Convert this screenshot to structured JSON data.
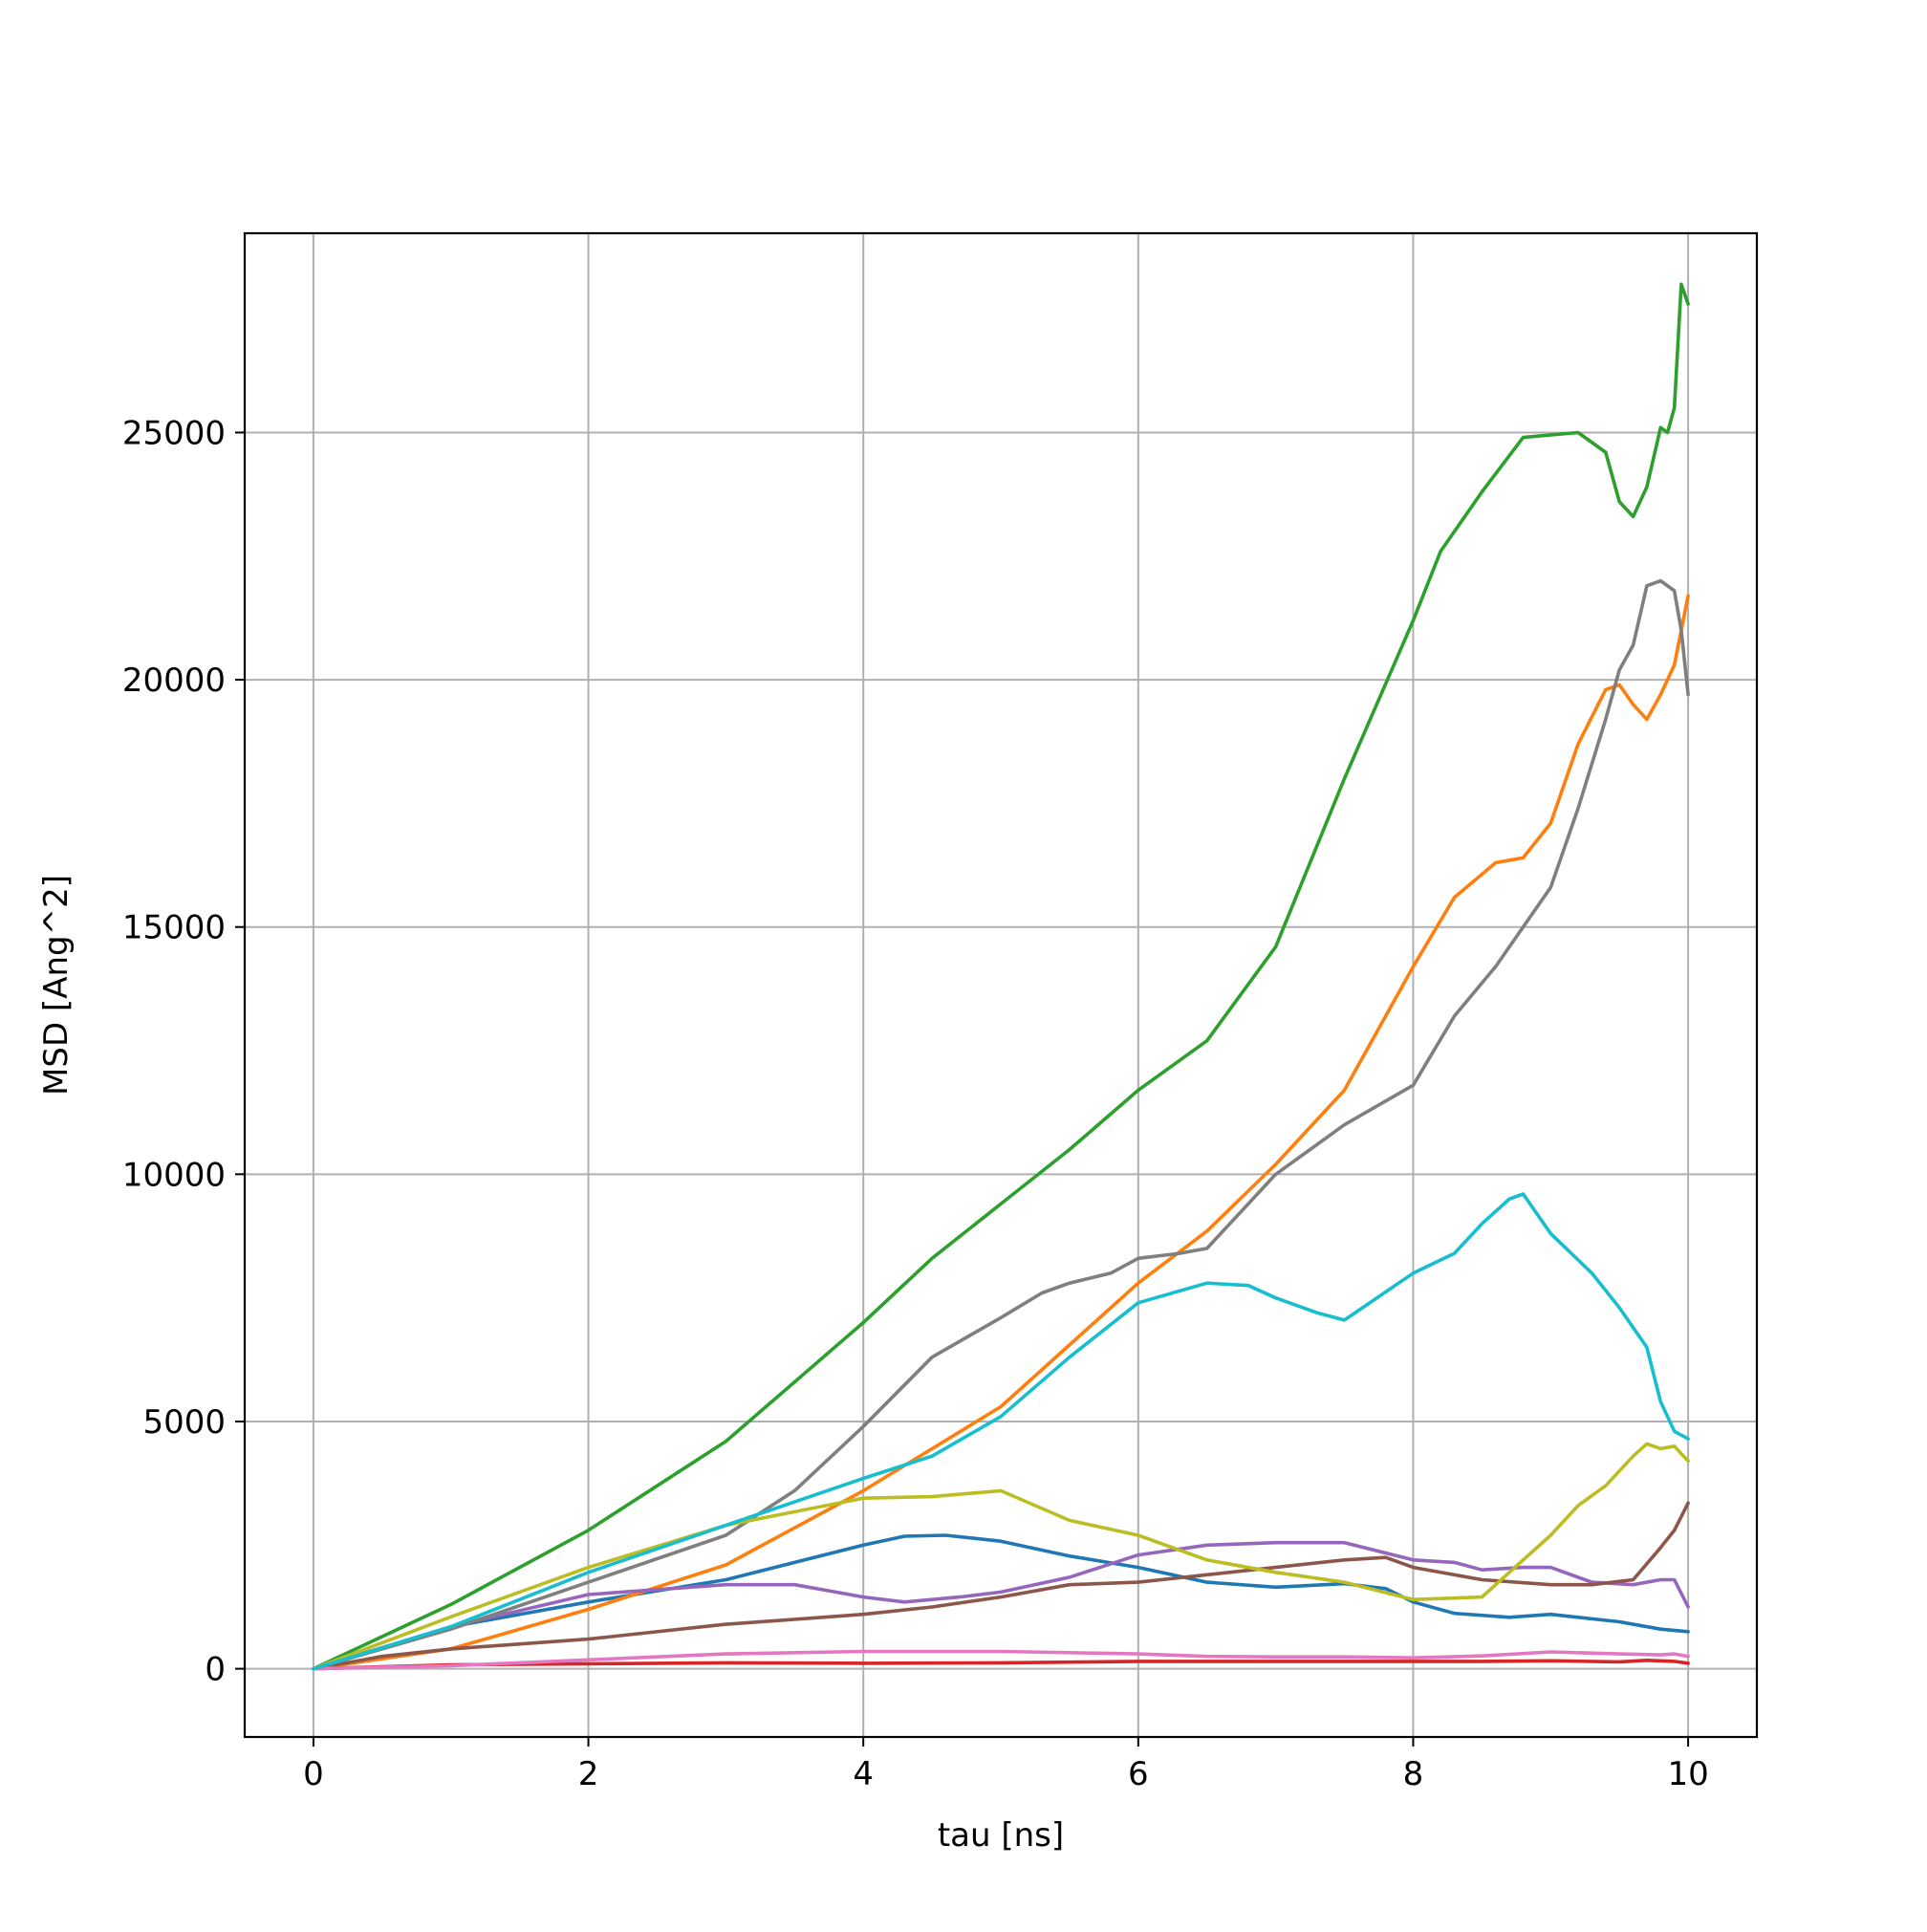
{
  "chart_data": {
    "type": "line",
    "xlabel": "tau [ns]",
    "ylabel": "MSD [Ang^2]",
    "xlim": [
      -0.5,
      10.5
    ],
    "ylim": [
      -1380,
      29030
    ],
    "xticks": [
      0,
      2,
      4,
      6,
      8,
      10
    ],
    "yticks": [
      0,
      5000,
      10000,
      15000,
      20000,
      25000
    ],
    "grid": true,
    "series": [
      {
        "color": "#1f77b4",
        "x": [
          0,
          1,
          2,
          3,
          3.5,
          4,
          4.3,
          4.6,
          5,
          5.5,
          6,
          6.5,
          7,
          7.5,
          7.8,
          8,
          8.3,
          8.7,
          9,
          9.5,
          9.8,
          10
        ],
        "y": [
          0,
          850,
          1350,
          1800,
          2150,
          2500,
          2680,
          2700,
          2580,
          2280,
          2050,
          1750,
          1650,
          1720,
          1620,
          1350,
          1120,
          1040,
          1100,
          950,
          800,
          750
        ]
      },
      {
        "color": "#ff7f0e",
        "x": [
          0,
          1,
          2,
          3,
          4,
          5,
          6,
          6.5,
          7,
          7.5,
          8,
          8.3,
          8.6,
          8.8,
          9,
          9.2,
          9.4,
          9.5,
          9.6,
          9.7,
          9.8,
          9.9,
          10
        ],
        "y": [
          0,
          400,
          1200,
          2100,
          3600,
          5300,
          7800,
          8850,
          10200,
          11700,
          14200,
          15600,
          16300,
          16400,
          17100,
          18700,
          19800,
          19900,
          19500,
          19200,
          19700,
          20300,
          21700
        ]
      },
      {
        "color": "#2ca02c",
        "x": [
          0,
          1,
          2,
          3,
          4,
          4.5,
          5,
          5.5,
          6,
          6.5,
          7,
          7.5,
          8,
          8.2,
          8.5,
          8.8,
          9,
          9.2,
          9.4,
          9.5,
          9.6,
          9.7,
          9.8,
          9.85,
          9.9,
          9.95,
          10
        ],
        "y": [
          0,
          1300,
          2800,
          4600,
          7000,
          8300,
          9400,
          10500,
          11700,
          12700,
          14600,
          18000,
          21200,
          22600,
          23800,
          24900,
          24950,
          25000,
          24600,
          23600,
          23300,
          23900,
          25100,
          25000,
          25500,
          28000,
          27600
        ]
      },
      {
        "color": "#d62728",
        "x": [
          0,
          1,
          2,
          3,
          4,
          5,
          6,
          7,
          8,
          8.5,
          9,
          9.5,
          9.7,
          9.9,
          10
        ],
        "y": [
          0,
          80,
          100,
          120,
          110,
          120,
          150,
          150,
          150,
          150,
          160,
          140,
          170,
          150,
          110
        ]
      },
      {
        "color": "#9467bd",
        "x": [
          0,
          1,
          2,
          3,
          3.5,
          4,
          4.3,
          4.7,
          5,
          5.5,
          6,
          6.5,
          7,
          7.5,
          8,
          8.3,
          8.5,
          8.8,
          9,
          9.3,
          9.6,
          9.8,
          9.9,
          10
        ],
        "y": [
          0,
          850,
          1500,
          1700,
          1700,
          1450,
          1350,
          1450,
          1550,
          1850,
          2300,
          2500,
          2550,
          2550,
          2200,
          2150,
          2000,
          2050,
          2050,
          1750,
          1700,
          1800,
          1800,
          1250
        ]
      },
      {
        "color": "#8c564b",
        "x": [
          0,
          0.5,
          1,
          2,
          3,
          4,
          4.5,
          5,
          5.5,
          6,
          6.5,
          7,
          7.5,
          7.8,
          8,
          8.5,
          9,
          9.3,
          9.6,
          9.8,
          9.9,
          10
        ],
        "y": [
          0,
          250,
          400,
          600,
          900,
          1100,
          1250,
          1450,
          1700,
          1750,
          1900,
          2050,
          2200,
          2250,
          2050,
          1800,
          1700,
          1700,
          1800,
          2450,
          2800,
          3350
        ]
      },
      {
        "color": "#e377c2",
        "x": [
          0,
          1,
          2,
          3,
          4,
          5,
          6,
          6.5,
          7,
          7.5,
          8,
          8.5,
          9,
          9.5,
          9.8,
          9.9,
          10
        ],
        "y": [
          0,
          60,
          180,
          300,
          350,
          350,
          300,
          250,
          240,
          240,
          220,
          260,
          340,
          300,
          280,
          300,
          250
        ]
      },
      {
        "color": "#7f7f7f",
        "x": [
          0,
          1,
          2,
          3,
          3.5,
          4,
          4.5,
          5,
          5.3,
          5.5,
          5.8,
          6,
          6.3,
          6.5,
          7,
          7.5,
          8,
          8.3,
          8.6,
          9,
          9.2,
          9.4,
          9.5,
          9.6,
          9.7,
          9.8,
          9.9,
          9.95,
          10
        ],
        "y": [
          0,
          800,
          1750,
          2700,
          3600,
          4900,
          6300,
          7100,
          7600,
          7800,
          8000,
          8300,
          8400,
          8500,
          10000,
          11000,
          11800,
          13200,
          14200,
          15800,
          17400,
          19200,
          20200,
          20700,
          21900,
          22000,
          21800,
          21000,
          19700
        ]
      },
      {
        "color": "#bcbd22",
        "x": [
          0,
          1,
          2,
          3,
          4,
          4.5,
          5,
          5.5,
          6,
          6.5,
          7,
          7.5,
          8,
          8.5,
          8.8,
          9,
          9.2,
          9.4,
          9.6,
          9.7,
          9.8,
          9.9,
          10
        ],
        "y": [
          0,
          1050,
          2050,
          2900,
          3450,
          3480,
          3600,
          3000,
          2700,
          2200,
          1950,
          1750,
          1400,
          1450,
          2200,
          2700,
          3300,
          3700,
          4300,
          4550,
          4450,
          4500,
          4200
        ]
      },
      {
        "color": "#17becf",
        "x": [
          0,
          1,
          2,
          3,
          4,
          4.5,
          5,
          5.5,
          6,
          6.5,
          6.8,
          7,
          7.3,
          7.5,
          8,
          8.3,
          8.5,
          8.7,
          8.8,
          9,
          9.3,
          9.5,
          9.7,
          9.8,
          9.9,
          10
        ],
        "y": [
          0,
          850,
          1950,
          2900,
          3850,
          4300,
          5100,
          6300,
          7400,
          7800,
          7750,
          7500,
          7200,
          7050,
          8000,
          8400,
          9000,
          9500,
          9600,
          8800,
          8000,
          7300,
          6500,
          5400,
          4800,
          4650
        ]
      }
    ]
  }
}
